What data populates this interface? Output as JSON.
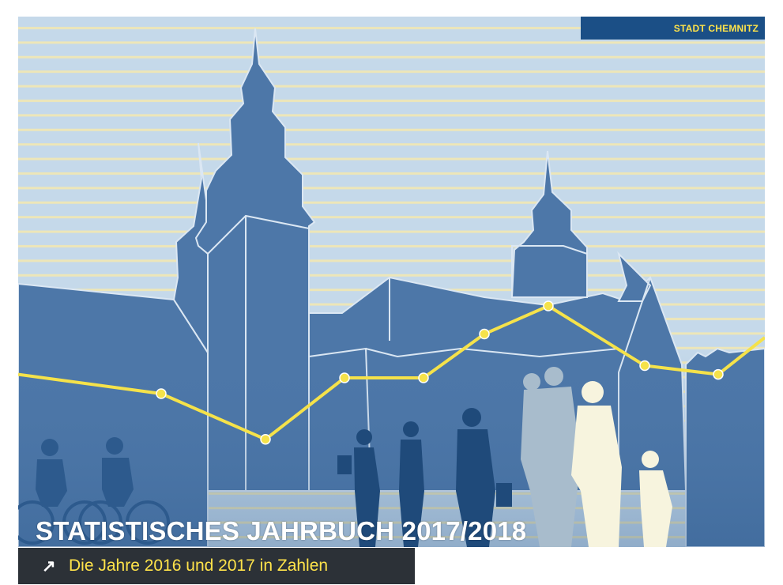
{
  "publisher_label": "STADT CHEMNITZ",
  "title": "STATISTISCHES JAHRBUCH 2017/2018",
  "subtitle": "Die Jahre 2016 und 2017 in Zahlen",
  "subtitle_icon": "arrow-up-right-icon",
  "colors": {
    "sky": "#c5d9ea",
    "stripe": "#ede6b8",
    "building": "#4d77a8",
    "building_dark": "#3d6596",
    "brand_blue": "#1b4f86",
    "accent_yellow": "#ffe34a",
    "subtitle_bar": "#2c3137"
  },
  "trend_line_values": [
    0.61,
    0.5,
    0.24,
    0.59,
    0.59,
    0.84,
    1.0,
    0.66,
    0.61,
    0.82
  ]
}
